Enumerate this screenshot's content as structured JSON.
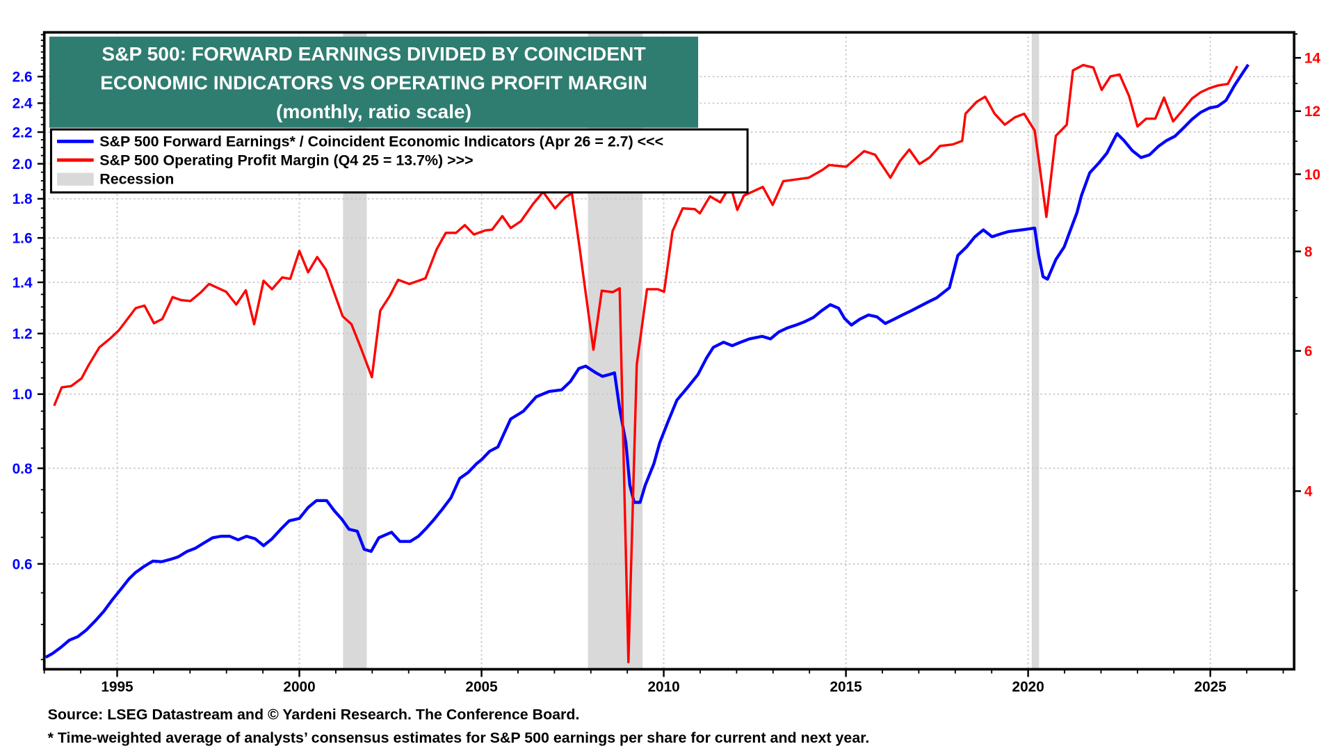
{
  "title": {
    "line1": "S&P 500: FORWARD EARNINGS DIVIDED BY COINCIDENT",
    "line2": "ECONOMIC INDICATORS VS OPERATING PROFIT MARGIN",
    "line3": "(monthly, ratio scale)",
    "background": "#2e7d70"
  },
  "legend": {
    "blue": "S&P 500 Forward Earnings* / Coincident Economic Indicators (Apr 26 = 2.7) <<<",
    "red": "S&P 500 Operating Profit Margin (Q4 25 = 13.7%) >>>",
    "recession": "Recession"
  },
  "footer": {
    "source": "Source: LSEG Datastream and © Yardeni Research. The Conference Board.",
    "note": "* Time-weighted average of analysts’ consensus estimates for S&P 500 earnings per share for current and next year."
  },
  "chart_data": {
    "type": "line",
    "x_axis": {
      "range": [
        1993,
        2027.3
      ],
      "tick_labels": [
        "1995",
        "2000",
        "2005",
        "2010",
        "2015",
        "2020",
        "2025"
      ],
      "ticks": [
        1995,
        2000,
        2005,
        2010,
        2015,
        2020,
        2025
      ]
    },
    "y_left": {
      "scale": "log",
      "range": [
        0.437,
        2.97
      ],
      "tick_labels": [
        "0.6",
        "0.8",
        "1.0",
        "1.2",
        "1.4",
        "1.6",
        "1.8",
        "2.0",
        "2.2",
        "2.4",
        "2.6"
      ],
      "ticks": [
        0.6,
        0.8,
        1.0,
        1.2,
        1.4,
        1.6,
        1.8,
        2.0,
        2.2,
        2.4,
        2.6
      ],
      "color": "#0000ff"
    },
    "y_right": {
      "scale": "log",
      "range": [
        2.39,
        15.07
      ],
      "tick_labels": [
        "4",
        "6",
        "8",
        "10",
        "12",
        "14"
      ],
      "ticks": [
        4,
        6,
        8,
        10,
        12,
        14
      ],
      "color": "#ff0000"
    },
    "grid": true,
    "legend_placement": "top-left",
    "recessions": [
      [
        2001.2,
        2001.85
      ],
      [
        2007.92,
        2009.42
      ],
      [
        2020.1,
        2020.3
      ]
    ],
    "recession_color": "#d9d9d9",
    "series": [
      {
        "name": "S&P 500 Forward Earnings* / Coincident Economic Indicators",
        "axis": "left",
        "color": "#0000ff",
        "points": [
          [
            1993.04,
            0.453
          ],
          [
            1993.22,
            0.458
          ],
          [
            1993.46,
            0.467
          ],
          [
            1993.69,
            0.477
          ],
          [
            1993.92,
            0.482
          ],
          [
            1994.16,
            0.492
          ],
          [
            1994.39,
            0.505
          ],
          [
            1994.63,
            0.52
          ],
          [
            1994.86,
            0.538
          ],
          [
            1995.09,
            0.555
          ],
          [
            1995.33,
            0.574
          ],
          [
            1995.51,
            0.585
          ],
          [
            1995.75,
            0.596
          ],
          [
            1995.98,
            0.605
          ],
          [
            1996.22,
            0.604
          ],
          [
            1996.45,
            0.608
          ],
          [
            1996.68,
            0.613
          ],
          [
            1996.92,
            0.623
          ],
          [
            1997.15,
            0.629
          ],
          [
            1997.38,
            0.639
          ],
          [
            1997.62,
            0.649
          ],
          [
            1997.85,
            0.652
          ],
          [
            1998.09,
            0.652
          ],
          [
            1998.32,
            0.645
          ],
          [
            1998.55,
            0.652
          ],
          [
            1998.79,
            0.647
          ],
          [
            1999.02,
            0.634
          ],
          [
            1999.25,
            0.647
          ],
          [
            1999.49,
            0.666
          ],
          [
            1999.72,
            0.683
          ],
          [
            2000.0,
            0.688
          ],
          [
            2000.24,
            0.711
          ],
          [
            2000.47,
            0.726
          ],
          [
            2000.75,
            0.726
          ],
          [
            2000.96,
            0.704
          ],
          [
            2001.17,
            0.686
          ],
          [
            2001.36,
            0.666
          ],
          [
            2001.59,
            0.662
          ],
          [
            2001.78,
            0.627
          ],
          [
            2001.97,
            0.623
          ],
          [
            2002.18,
            0.649
          ],
          [
            2002.53,
            0.66
          ],
          [
            2002.76,
            0.642
          ],
          [
            2003.04,
            0.642
          ],
          [
            2003.27,
            0.652
          ],
          [
            2003.46,
            0.666
          ],
          [
            2003.7,
            0.686
          ],
          [
            2003.93,
            0.708
          ],
          [
            2004.16,
            0.732
          ],
          [
            2004.4,
            0.776
          ],
          [
            2004.63,
            0.79
          ],
          [
            2004.86,
            0.811
          ],
          [
            2005.0,
            0.821
          ],
          [
            2005.22,
            0.842
          ],
          [
            2005.45,
            0.853
          ],
          [
            2005.8,
            0.928
          ],
          [
            2006.15,
            0.95
          ],
          [
            2006.5,
            0.992
          ],
          [
            2006.85,
            1.008
          ],
          [
            2007.2,
            1.013
          ],
          [
            2007.44,
            1.039
          ],
          [
            2007.67,
            1.08
          ],
          [
            2007.86,
            1.088
          ],
          [
            2008.14,
            1.066
          ],
          [
            2008.32,
            1.055
          ],
          [
            2008.51,
            1.061
          ],
          [
            2008.65,
            1.066
          ],
          [
            2008.79,
            0.957
          ],
          [
            2008.96,
            0.864
          ],
          [
            2009.07,
            0.76
          ],
          [
            2009.19,
            0.722
          ],
          [
            2009.35,
            0.722
          ],
          [
            2009.49,
            0.76
          ],
          [
            2009.73,
            0.811
          ],
          [
            2009.89,
            0.864
          ],
          [
            2010.12,
            0.921
          ],
          [
            2010.36,
            0.982
          ],
          [
            2010.66,
            1.021
          ],
          [
            2010.94,
            1.061
          ],
          [
            2011.18,
            1.116
          ],
          [
            2011.36,
            1.151
          ],
          [
            2011.64,
            1.169
          ],
          [
            2011.88,
            1.157
          ],
          [
            2012.11,
            1.169
          ],
          [
            2012.35,
            1.181
          ],
          [
            2012.7,
            1.19
          ],
          [
            2012.93,
            1.181
          ],
          [
            2013.16,
            1.206
          ],
          [
            2013.4,
            1.221
          ],
          [
            2013.63,
            1.231
          ],
          [
            2013.86,
            1.243
          ],
          [
            2014.1,
            1.259
          ],
          [
            2014.33,
            1.285
          ],
          [
            2014.57,
            1.309
          ],
          [
            2014.8,
            1.295
          ],
          [
            2014.96,
            1.256
          ],
          [
            2015.15,
            1.231
          ],
          [
            2015.38,
            1.253
          ],
          [
            2015.62,
            1.269
          ],
          [
            2015.85,
            1.262
          ],
          [
            2016.08,
            1.237
          ],
          [
            2016.32,
            1.253
          ],
          [
            2016.55,
            1.269
          ],
          [
            2016.79,
            1.285
          ],
          [
            2017.02,
            1.302
          ],
          [
            2017.25,
            1.319
          ],
          [
            2017.49,
            1.336
          ],
          [
            2017.84,
            1.377
          ],
          [
            2018.07,
            1.518
          ],
          [
            2018.31,
            1.557
          ],
          [
            2018.54,
            1.606
          ],
          [
            2018.77,
            1.639
          ],
          [
            2019.01,
            1.606
          ],
          [
            2019.24,
            1.619
          ],
          [
            2019.47,
            1.631
          ],
          [
            2019.82,
            1.639
          ],
          [
            2020.18,
            1.648
          ],
          [
            2020.29,
            1.518
          ],
          [
            2020.41,
            1.424
          ],
          [
            2020.53,
            1.413
          ],
          [
            2020.76,
            1.499
          ],
          [
            2020.99,
            1.557
          ],
          [
            2021.18,
            1.648
          ],
          [
            2021.34,
            1.726
          ],
          [
            2021.46,
            1.816
          ],
          [
            2021.69,
            1.946
          ],
          [
            2021.93,
            2.002
          ],
          [
            2022.16,
            2.064
          ],
          [
            2022.44,
            2.19
          ],
          [
            2022.63,
            2.145
          ],
          [
            2022.86,
            2.08
          ],
          [
            2023.1,
            2.038
          ],
          [
            2023.33,
            2.054
          ],
          [
            2023.57,
            2.107
          ],
          [
            2023.8,
            2.145
          ],
          [
            2024.03,
            2.173
          ],
          [
            2024.27,
            2.229
          ],
          [
            2024.5,
            2.287
          ],
          [
            2024.73,
            2.334
          ],
          [
            2024.97,
            2.365
          ],
          [
            2025.2,
            2.377
          ],
          [
            2025.43,
            2.42
          ],
          [
            2025.67,
            2.534
          ],
          [
            2025.9,
            2.634
          ],
          [
            2026.04,
            2.695
          ]
        ]
      },
      {
        "name": "S&P 500 Operating Profit Margin",
        "axis": "right",
        "color": "#ff0000",
        "points": [
          [
            1993.27,
            5.12
          ],
          [
            1993.48,
            5.4
          ],
          [
            1993.74,
            5.42
          ],
          [
            1994.02,
            5.54
          ],
          [
            1994.21,
            5.75
          ],
          [
            1994.51,
            6.06
          ],
          [
            1994.81,
            6.22
          ],
          [
            1995.05,
            6.37
          ],
          [
            1995.51,
            6.79
          ],
          [
            1995.75,
            6.84
          ],
          [
            1996.01,
            6.5
          ],
          [
            1996.24,
            6.58
          ],
          [
            1996.52,
            7.01
          ],
          [
            1996.75,
            6.95
          ],
          [
            1997.01,
            6.93
          ],
          [
            1997.29,
            7.1
          ],
          [
            1997.52,
            7.28
          ],
          [
            1997.99,
            7.12
          ],
          [
            1998.27,
            6.86
          ],
          [
            1998.53,
            7.15
          ],
          [
            1998.76,
            6.48
          ],
          [
            1999.02,
            7.35
          ],
          [
            1999.25,
            7.17
          ],
          [
            1999.53,
            7.42
          ],
          [
            1999.75,
            7.39
          ],
          [
            2000.0,
            8.01
          ],
          [
            2000.24,
            7.53
          ],
          [
            2000.49,
            7.87
          ],
          [
            2000.73,
            7.59
          ],
          [
            2001.19,
            6.63
          ],
          [
            2001.43,
            6.48
          ],
          [
            2001.69,
            6.05
          ],
          [
            2001.99,
            5.56
          ],
          [
            2002.22,
            6.74
          ],
          [
            2002.48,
            7.03
          ],
          [
            2002.71,
            7.37
          ],
          [
            2003.02,
            7.28
          ],
          [
            2003.46,
            7.4
          ],
          [
            2003.77,
            8.05
          ],
          [
            2004.02,
            8.44
          ],
          [
            2004.3,
            8.44
          ],
          [
            2004.54,
            8.63
          ],
          [
            2004.79,
            8.4
          ],
          [
            2005.1,
            8.5
          ],
          [
            2005.29,
            8.52
          ],
          [
            2005.57,
            8.86
          ],
          [
            2005.8,
            8.56
          ],
          [
            2006.08,
            8.73
          ],
          [
            2006.41,
            9.17
          ],
          [
            2006.69,
            9.5
          ],
          [
            2007.02,
            9.06
          ],
          [
            2007.3,
            9.36
          ],
          [
            2007.48,
            9.46
          ],
          [
            2007.67,
            8.21
          ],
          [
            2007.86,
            7.08
          ],
          [
            2008.07,
            6.02
          ],
          [
            2008.3,
            7.14
          ],
          [
            2008.6,
            7.11
          ],
          [
            2008.79,
            7.19
          ],
          [
            2009.03,
            2.44
          ],
          [
            2009.26,
            5.77
          ],
          [
            2009.54,
            7.17
          ],
          [
            2009.84,
            7.17
          ],
          [
            2010.01,
            7.12
          ],
          [
            2010.24,
            8.48
          ],
          [
            2010.52,
            9.06
          ],
          [
            2010.85,
            9.04
          ],
          [
            2010.99,
            8.93
          ],
          [
            2011.27,
            9.38
          ],
          [
            2011.55,
            9.22
          ],
          [
            2011.83,
            9.68
          ],
          [
            2012.02,
            9.02
          ],
          [
            2012.2,
            9.4
          ],
          [
            2012.72,
            9.64
          ],
          [
            2012.99,
            9.15
          ],
          [
            2013.28,
            9.8
          ],
          [
            2013.98,
            9.9
          ],
          [
            2014.35,
            10.12
          ],
          [
            2014.54,
            10.27
          ],
          [
            2015.01,
            10.22
          ],
          [
            2015.5,
            10.69
          ],
          [
            2015.8,
            10.58
          ],
          [
            2016.22,
            9.9
          ],
          [
            2016.48,
            10.38
          ],
          [
            2016.74,
            10.74
          ],
          [
            2017.02,
            10.3
          ],
          [
            2017.3,
            10.5
          ],
          [
            2017.58,
            10.85
          ],
          [
            2017.93,
            10.9
          ],
          [
            2018.19,
            11.01
          ],
          [
            2018.28,
            11.91
          ],
          [
            2018.59,
            12.33
          ],
          [
            2018.82,
            12.51
          ],
          [
            2019.08,
            11.91
          ],
          [
            2019.36,
            11.54
          ],
          [
            2019.64,
            11.79
          ],
          [
            2019.89,
            11.91
          ],
          [
            2020.18,
            11.34
          ],
          [
            2020.29,
            10.43
          ],
          [
            2020.5,
            8.84
          ],
          [
            2020.76,
            11.17
          ],
          [
            2021.06,
            11.54
          ],
          [
            2021.23,
            13.5
          ],
          [
            2021.51,
            13.71
          ],
          [
            2021.79,
            13.61
          ],
          [
            2022.02,
            12.76
          ],
          [
            2022.26,
            13.27
          ],
          [
            2022.51,
            13.34
          ],
          [
            2022.77,
            12.54
          ],
          [
            2023.0,
            11.48
          ],
          [
            2023.24,
            11.74
          ],
          [
            2023.49,
            11.74
          ],
          [
            2023.73,
            12.48
          ],
          [
            2023.98,
            11.65
          ],
          [
            2024.24,
            12.03
          ],
          [
            2024.5,
            12.45
          ],
          [
            2024.73,
            12.67
          ],
          [
            2024.97,
            12.82
          ],
          [
            2025.2,
            12.92
          ],
          [
            2025.48,
            12.98
          ],
          [
            2025.74,
            13.67
          ]
        ]
      }
    ]
  }
}
